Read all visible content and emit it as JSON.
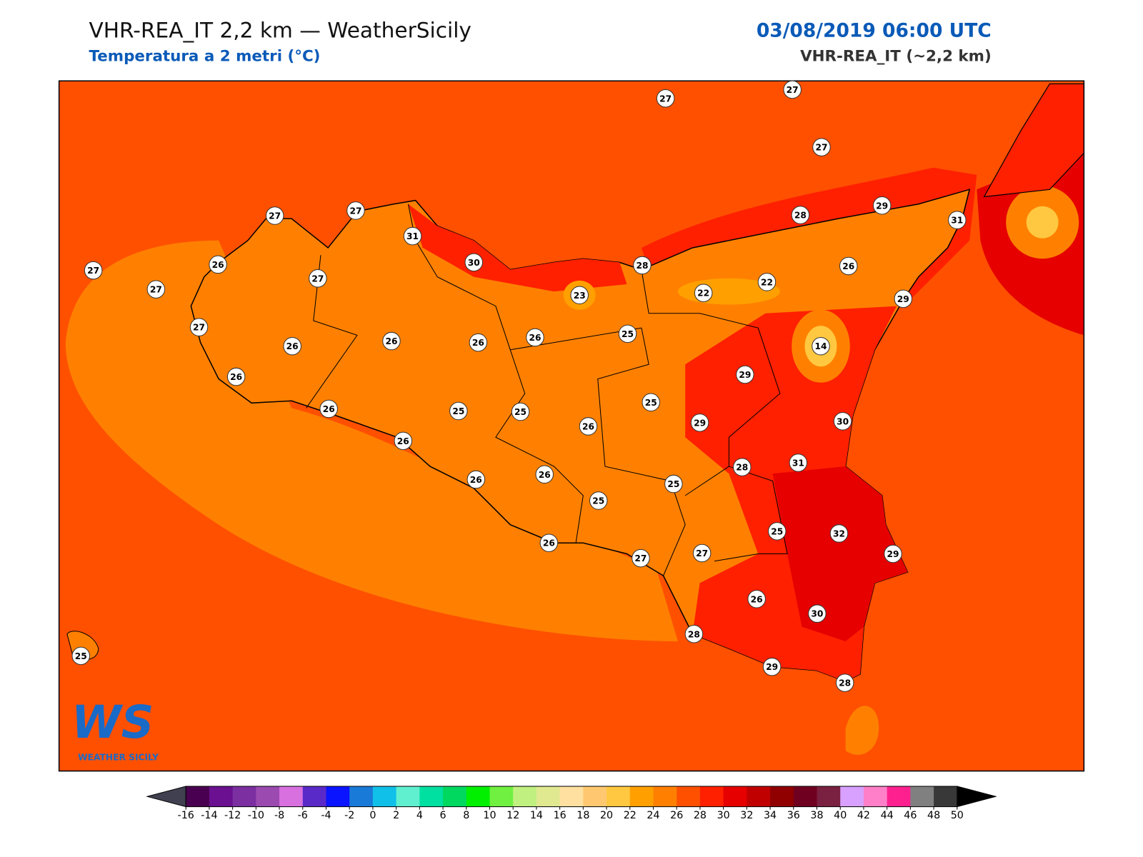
{
  "header": {
    "title": "VHR-REA_IT 2,2 km — WeatherSicily",
    "subtitle": "Temperatura a 2 metri (°C)",
    "datetime": "03/08/2019 06:00 UTC",
    "model": "VHR-REA_IT (~2,2 km)"
  },
  "stations": [
    27,
    27,
    27,
    27,
    27,
    31,
    30,
    28,
    29,
    31,
    27,
    26,
    27,
    28,
    26,
    27,
    23,
    22,
    22,
    29,
    27,
    26,
    26,
    26,
    26,
    25,
    14,
    26,
    29,
    25,
    26,
    25,
    25,
    26,
    29,
    30,
    26,
    31,
    28,
    26,
    26,
    25,
    25,
    25,
    32,
    26,
    27,
    27,
    29,
    26,
    30,
    28,
    25,
    29,
    28
  ],
  "colorbar": {
    "ticks": [
      -16,
      -14,
      -12,
      -10,
      -8,
      -6,
      -4,
      -2,
      0,
      2,
      4,
      6,
      8,
      10,
      12,
      14,
      16,
      18,
      20,
      22,
      24,
      26,
      28,
      30,
      32,
      34,
      36,
      38,
      40,
      42,
      44,
      46,
      48,
      50
    ],
    "colors": [
      "#4a0050",
      "#6a1090",
      "#7b2fa0",
      "#9b4ab0",
      "#d870e0",
      "#5a2ac8",
      "#0a14ff",
      "#1a7ad8",
      "#10c0e8",
      "#60f0d0",
      "#00e0a0",
      "#00d860",
      "#00f000",
      "#70f040",
      "#c0f080",
      "#e0e890",
      "#ffe0a0",
      "#ffc870",
      "#ffc840",
      "#ffa000",
      "#ff8000",
      "#ff5000",
      "#ff2000",
      "#e60000",
      "#c00000",
      "#900000",
      "#700020",
      "#7a2040",
      "#d8a0ff",
      "#ff80c8",
      "#ff2090",
      "#808080",
      "#383838"
    ],
    "under_color": "#404050",
    "over_color": "#000000"
  },
  "logo": {
    "mark": "WS",
    "text": "WEATHER SICILY"
  }
}
